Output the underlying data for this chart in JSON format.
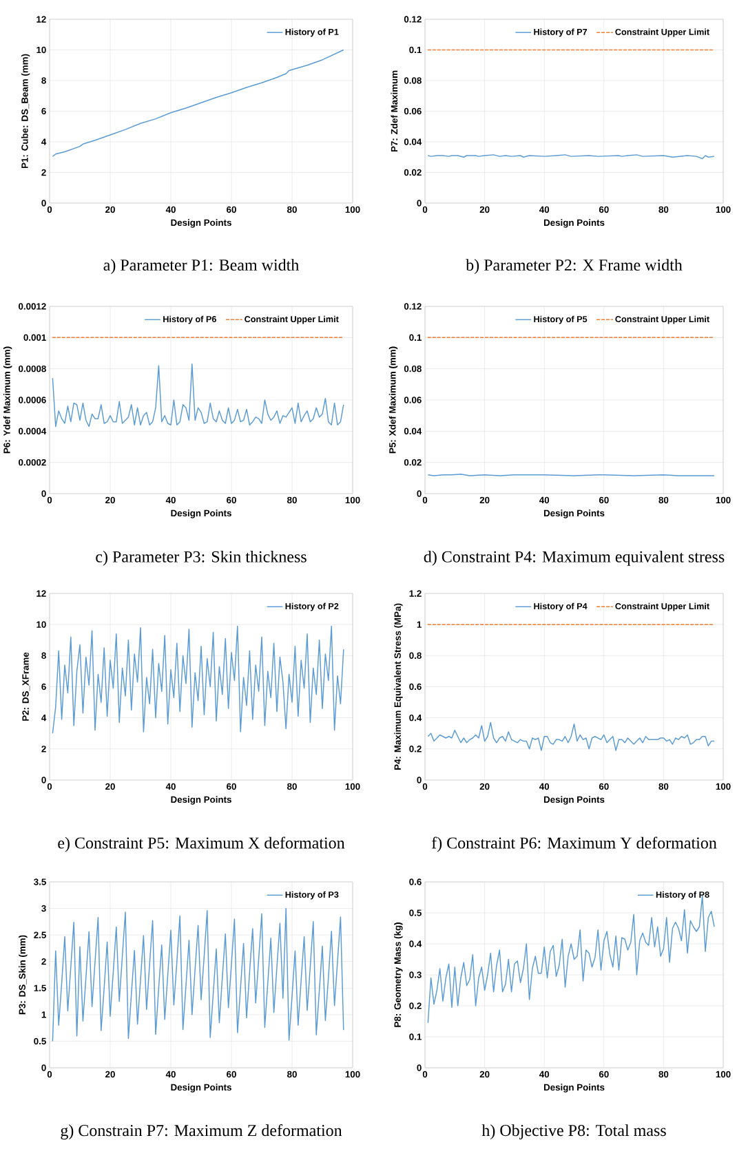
{
  "chart_data": [
    {
      "type": "line",
      "xlabel": "Design Points",
      "ylabel": "P1: Cube: DS_Beam (mm)",
      "annotations": [
        "a) Parameter P1: Beam width"
      ],
      "xlim": [
        0,
        100
      ],
      "xticks": [
        0,
        20,
        40,
        60,
        80,
        100
      ],
      "ylim": [
        0,
        12
      ],
      "yticks": [
        0,
        2,
        4,
        6,
        8,
        10,
        12
      ],
      "grid": true,
      "legend": "top right",
      "series": [
        {
          "name": "History of P1",
          "color": "#5b9bd5",
          "x": [
            1,
            2,
            5,
            10,
            11,
            15,
            20,
            25,
            30,
            35,
            40,
            45,
            50,
            55,
            60,
            65,
            70,
            75,
            78,
            79,
            85,
            90,
            97
          ],
          "values": [
            3.05,
            3.2,
            3.35,
            3.7,
            3.85,
            4.1,
            4.45,
            4.8,
            5.2,
            5.5,
            5.9,
            6.2,
            6.55,
            6.9,
            7.2,
            7.55,
            7.85,
            8.2,
            8.45,
            8.65,
            9.0,
            9.35,
            10.0
          ]
        }
      ]
    },
    {
      "type": "line",
      "xlabel": "Design Points",
      "ylabel": "P7: Zdef Maximum",
      "annotations": [
        "b) Parameter P2: X Frame width"
      ],
      "xlim": [
        0,
        100
      ],
      "xticks": [
        0,
        20,
        40,
        60,
        80,
        100
      ],
      "ylim": [
        0,
        0.12
      ],
      "yticks": [
        0,
        0.02,
        0.04,
        0.06,
        0.08,
        0.1,
        0.12
      ],
      "grid": true,
      "legend": "top right",
      "series": [
        {
          "name": "History of P7",
          "color": "#5b9bd5",
          "x": [
            1,
            2,
            4,
            6,
            8,
            9,
            11,
            13,
            14,
            17,
            18,
            20,
            23,
            25,
            27,
            29,
            32,
            33,
            35,
            40,
            44,
            47,
            49,
            55,
            58,
            65,
            66,
            68,
            71,
            73,
            80,
            83,
            88,
            91,
            93,
            94,
            95,
            97
          ],
          "values": [
            0.031,
            0.0305,
            0.031,
            0.031,
            0.0305,
            0.031,
            0.031,
            0.03,
            0.031,
            0.031,
            0.0305,
            0.031,
            0.0315,
            0.0305,
            0.031,
            0.0305,
            0.031,
            0.03,
            0.031,
            0.0305,
            0.031,
            0.0315,
            0.0305,
            0.031,
            0.0305,
            0.031,
            0.0305,
            0.031,
            0.0315,
            0.0305,
            0.031,
            0.03,
            0.031,
            0.0305,
            0.029,
            0.031,
            0.03,
            0.0305
          ]
        },
        {
          "name": "Constraint Upper Limit",
          "color": "#ed7d31",
          "line_style": "dashed",
          "x": [
            1,
            97
          ],
          "values": [
            0.1,
            0.1
          ]
        }
      ]
    },
    {
      "type": "line",
      "xlabel": "Design Points",
      "ylabel": "P6: Ydef Maximum (mm)",
      "annotations": [
        "c) Parameter P3: Skin thickness"
      ],
      "xlim": [
        0,
        100
      ],
      "xticks": [
        0,
        20,
        40,
        60,
        80,
        100
      ],
      "ylim": [
        0,
        0.0012
      ],
      "yticks": [
        0,
        0.0002,
        0.0004,
        0.0006,
        0.0008,
        0.001,
        0.0012
      ],
      "grid": true,
      "legend": "top right",
      "series": [
        {
          "name": "History of P6",
          "color": "#5b9bd5",
          "x": [
            1,
            2,
            3,
            4,
            5,
            6,
            7,
            8,
            9,
            10,
            11,
            12,
            13,
            14,
            15,
            16,
            17,
            18,
            19,
            20,
            21,
            22,
            23,
            24,
            25,
            26,
            27,
            28,
            29,
            30,
            31,
            32,
            33,
            34,
            35,
            36,
            37,
            38,
            39,
            40,
            41,
            42,
            43,
            44,
            45,
            46,
            47,
            48,
            49,
            50,
            51,
            52,
            53,
            54,
            55,
            56,
            57,
            58,
            59,
            60,
            61,
            62,
            63,
            64,
            65,
            66,
            67,
            68,
            69,
            70,
            71,
            72,
            73,
            74,
            75,
            76,
            77,
            78,
            79,
            80,
            81,
            82,
            83,
            84,
            85,
            86,
            87,
            88,
            89,
            90,
            91,
            92,
            93,
            94,
            95,
            96,
            97
          ],
          "values": [
            0.00074,
            0.00043,
            0.00053,
            0.00048,
            0.00045,
            0.00056,
            0.00046,
            0.00058,
            0.00057,
            0.00047,
            0.00058,
            0.00047,
            0.00043,
            0.00051,
            0.00048,
            0.00048,
            0.00057,
            0.00045,
            0.00046,
            0.0005,
            0.00046,
            0.00046,
            0.00059,
            0.00045,
            0.00047,
            0.00049,
            0.00057,
            0.00044,
            0.00055,
            0.00044,
            0.0005,
            0.00052,
            0.00044,
            0.00046,
            0.00055,
            0.00082,
            0.00046,
            0.0005,
            0.00045,
            0.00044,
            0.0006,
            0.00044,
            0.00046,
            0.00057,
            0.00055,
            0.00047,
            0.00083,
            0.00047,
            0.00055,
            0.00052,
            0.00045,
            0.00046,
            0.00058,
            0.00048,
            0.00046,
            0.00053,
            0.00047,
            0.00045,
            0.00055,
            0.00045,
            0.00047,
            0.00054,
            0.00046,
            0.00047,
            0.00054,
            0.00044,
            0.00046,
            0.00049,
            0.00048,
            0.00045,
            0.0006,
            0.00051,
            0.00047,
            0.00049,
            0.00053,
            0.00045,
            0.0005,
            0.00049,
            0.00052,
            0.00055,
            0.00045,
            0.00058,
            0.00046,
            0.0005,
            0.00053,
            0.00046,
            0.00048,
            0.00055,
            0.00049,
            0.00051,
            0.00061,
            0.00046,
            0.00044,
            0.00058,
            0.00044,
            0.00046,
            0.00057
          ]
        },
        {
          "name": "Constraint Upper Limit",
          "color": "#ed7d31",
          "line_style": "dashed",
          "x": [
            1,
            97
          ],
          "values": [
            0.001,
            0.001
          ]
        }
      ]
    },
    {
      "type": "line",
      "xlabel": "Design Points",
      "ylabel": "P5: Xdef Maximum (mm)",
      "annotations": [
        "d) Constraint P4: Maximum equivalent stress"
      ],
      "xlim": [
        0,
        100
      ],
      "xticks": [
        0,
        20,
        40,
        60,
        80,
        100
      ],
      "ylim": [
        0,
        0.12
      ],
      "yticks": [
        0,
        0.02,
        0.04,
        0.06,
        0.08,
        0.1,
        0.12
      ],
      "grid": true,
      "legend": "top right",
      "series": [
        {
          "name": "History of P5",
          "color": "#5b9bd5",
          "x": [
            1,
            3,
            6,
            9,
            12,
            15,
            20,
            25,
            30,
            40,
            50,
            58,
            60,
            70,
            80,
            85,
            90,
            97
          ],
          "values": [
            0.012,
            0.0115,
            0.012,
            0.012,
            0.0125,
            0.0115,
            0.012,
            0.0115,
            0.012,
            0.012,
            0.0115,
            0.012,
            0.012,
            0.0115,
            0.012,
            0.0115,
            0.0115,
            0.0115
          ]
        },
        {
          "name": "Constraint Upper Limit",
          "color": "#ed7d31",
          "line_style": "dashed",
          "x": [
            1,
            97
          ],
          "values": [
            0.1,
            0.1
          ]
        }
      ]
    },
    {
      "type": "line",
      "xlabel": "Design Points",
      "ylabel": "P2: DS_XFrame",
      "annotations": [
        "e) Constraint P5: Maximum X deformation"
      ],
      "xlim": [
        0,
        100
      ],
      "xticks": [
        0,
        20,
        40,
        60,
        80,
        100
      ],
      "ylim": [
        0,
        12
      ],
      "yticks": [
        0,
        2,
        4,
        6,
        8,
        10,
        12
      ],
      "grid": true,
      "legend": "top right",
      "series": [
        {
          "name": "History of P2",
          "color": "#5b9bd5",
          "x": [
            1,
            2,
            3,
            4,
            5,
            6,
            7,
            8,
            9,
            10,
            11,
            12,
            13,
            14,
            15,
            16,
            17,
            18,
            19,
            20,
            21,
            22,
            23,
            24,
            25,
            26,
            27,
            28,
            29,
            30,
            31,
            32,
            33,
            34,
            35,
            36,
            37,
            38,
            39,
            40,
            41,
            42,
            43,
            44,
            45,
            46,
            47,
            48,
            49,
            50,
            51,
            52,
            53,
            54,
            55,
            56,
            57,
            58,
            59,
            60,
            61,
            62,
            63,
            64,
            65,
            66,
            67,
            68,
            69,
            70,
            71,
            72,
            73,
            74,
            75,
            76,
            77,
            78,
            79,
            80,
            81,
            82,
            83,
            84,
            85,
            86,
            87,
            88,
            89,
            90,
            91,
            92,
            93,
            94,
            95,
            96,
            97
          ],
          "values": [
            3.0,
            4.7,
            8.3,
            3.9,
            7.4,
            5.6,
            9.2,
            3.5,
            7.0,
            8.7,
            4.3,
            7.9,
            6.1,
            9.6,
            3.2,
            6.8,
            5.0,
            8.5,
            4.1,
            7.7,
            5.9,
            9.4,
            3.7,
            7.2,
            5.4,
            9.0,
            4.5,
            8.1,
            6.3,
            9.8,
            3.1,
            6.6,
            4.9,
            8.4,
            4.0,
            7.5,
            5.7,
            9.3,
            3.6,
            7.1,
            5.3,
            8.8,
            4.4,
            8.0,
            6.2,
            9.7,
            3.4,
            6.9,
            5.1,
            8.6,
            4.2,
            7.8,
            6.0,
            9.5,
            3.8,
            7.3,
            5.5,
            9.1,
            4.6,
            8.2,
            6.4,
            9.9,
            3.1,
            6.6,
            4.8,
            8.3,
            3.9,
            7.4,
            5.7,
            9.2,
            3.5,
            7.0,
            5.3,
            8.8,
            4.4,
            7.9,
            6.3,
            3.3,
            6.8,
            5.0,
            8.6,
            4.1,
            7.7,
            5.9,
            9.4,
            3.7,
            7.2,
            5.5,
            9.0,
            4.6,
            8.1,
            6.4,
            9.9,
            3.2,
            6.7,
            4.9,
            8.4
          ]
        }
      ]
    },
    {
      "type": "line",
      "xlabel": "Design Points",
      "ylabel": "P4: Maximum Equivalent Stress (MPa)",
      "annotations": [
        "f) Constraint P6: Maximum Y deformation"
      ],
      "xlim": [
        0,
        100
      ],
      "xticks": [
        0,
        20,
        40,
        60,
        80,
        100
      ],
      "ylim": [
        0,
        1.2
      ],
      "yticks": [
        0,
        0.2,
        0.4,
        0.6,
        0.8,
        1,
        1.2
      ],
      "grid": true,
      "legend": "top right",
      "series": [
        {
          "name": "History of P4",
          "color": "#5b9bd5",
          "x": [
            1,
            2,
            3,
            4,
            5,
            6,
            7,
            8,
            9,
            10,
            11,
            12,
            13,
            14,
            15,
            16,
            17,
            18,
            19,
            20,
            21,
            22,
            23,
            24,
            25,
            26,
            27,
            28,
            29,
            30,
            31,
            32,
            33,
            34,
            35,
            36,
            37,
            38,
            39,
            40,
            41,
            42,
            43,
            44,
            45,
            46,
            47,
            48,
            49,
            50,
            51,
            52,
            53,
            54,
            55,
            56,
            57,
            58,
            59,
            60,
            61,
            62,
            63,
            64,
            65,
            66,
            67,
            68,
            69,
            70,
            71,
            72,
            73,
            74,
            75,
            76,
            77,
            78,
            79,
            80,
            81,
            82,
            83,
            84,
            85,
            86,
            87,
            88,
            89,
            90,
            91,
            92,
            93,
            94,
            95,
            96,
            97
          ],
          "values": [
            0.28,
            0.3,
            0.25,
            0.27,
            0.29,
            0.28,
            0.27,
            0.28,
            0.27,
            0.32,
            0.28,
            0.24,
            0.27,
            0.24,
            0.26,
            0.27,
            0.29,
            0.27,
            0.35,
            0.25,
            0.28,
            0.37,
            0.27,
            0.24,
            0.27,
            0.28,
            0.25,
            0.31,
            0.26,
            0.25,
            0.24,
            0.26,
            0.25,
            0.25,
            0.2,
            0.27,
            0.26,
            0.27,
            0.19,
            0.28,
            0.28,
            0.24,
            0.23,
            0.26,
            0.26,
            0.25,
            0.28,
            0.24,
            0.28,
            0.36,
            0.25,
            0.29,
            0.26,
            0.27,
            0.2,
            0.27,
            0.28,
            0.27,
            0.26,
            0.29,
            0.24,
            0.26,
            0.28,
            0.19,
            0.26,
            0.26,
            0.24,
            0.27,
            0.25,
            0.23,
            0.25,
            0.27,
            0.24,
            0.28,
            0.26,
            0.26,
            0.26,
            0.26,
            0.27,
            0.27,
            0.25,
            0.26,
            0.23,
            0.27,
            0.26,
            0.28,
            0.27,
            0.29,
            0.23,
            0.24,
            0.26,
            0.26,
            0.28,
            0.28,
            0.22,
            0.25,
            0.25
          ]
        },
        {
          "name": "Constraint Upper Limit",
          "color": "#ed7d31",
          "line_style": "dashed",
          "x": [
            1,
            97
          ],
          "values": [
            1,
            1
          ]
        }
      ]
    },
    {
      "type": "line",
      "xlabel": "Design Points",
      "ylabel": "P3: DS_Skin (mm)",
      "annotations": [
        "g) Constrain P7: Maximum Z deformation"
      ],
      "xlim": [
        0,
        100
      ],
      "xticks": [
        0,
        20,
        40,
        60,
        80,
        100
      ],
      "ylim": [
        0,
        3.5
      ],
      "yticks": [
        0,
        0.5,
        1,
        1.5,
        2,
        2.5,
        3,
        3.5
      ],
      "grid": true,
      "legend": "top right",
      "series": [
        {
          "name": "History of P3",
          "color": "#5b9bd5",
          "x": [
            1,
            2,
            3,
            4,
            5,
            6,
            7,
            8,
            9,
            10,
            11,
            12,
            13,
            14,
            15,
            16,
            17,
            18,
            19,
            20,
            21,
            22,
            23,
            24,
            25,
            26,
            27,
            28,
            29,
            30,
            31,
            32,
            33,
            34,
            35,
            36,
            37,
            38,
            39,
            40,
            41,
            42,
            43,
            44,
            45,
            46,
            47,
            48,
            49,
            50,
            51,
            52,
            53,
            54,
            55,
            56,
            57,
            58,
            59,
            60,
            61,
            62,
            63,
            64,
            65,
            66,
            67,
            68,
            69,
            70,
            71,
            72,
            73,
            74,
            75,
            76,
            77,
            78,
            79,
            80,
            81,
            82,
            83,
            84,
            85,
            86,
            87,
            88,
            89,
            90,
            91,
            92,
            93,
            94,
            95,
            96,
            97
          ],
          "values": [
            0.5,
            2.2,
            0.8,
            1.6,
            2.47,
            1.07,
            1.9,
            2.74,
            0.6,
            2.28,
            0.88,
            1.7,
            2.56,
            1.15,
            2.0,
            2.83,
            0.7,
            1.5,
            2.37,
            0.97,
            1.8,
            2.65,
            1.25,
            2.1,
            2.93,
            0.55,
            1.4,
            2.21,
            0.82,
            1.65,
            2.49,
            1.1,
            1.95,
            2.77,
            0.63,
            1.5,
            2.31,
            0.91,
            1.75,
            2.59,
            1.18,
            2.0,
            2.86,
            0.72,
            1.55,
            2.4,
            1.0,
            1.85,
            2.68,
            1.28,
            2.1,
            2.96,
            0.57,
            1.4,
            2.24,
            0.85,
            1.7,
            2.52,
            1.13,
            1.95,
            2.8,
            0.66,
            1.5,
            2.34,
            0.94,
            1.8,
            2.62,
            1.22,
            2.05,
            2.9,
            0.76,
            1.6,
            2.44,
            1.04,
            1.9,
            2.72,
            1.31,
            3.0,
            0.52,
            1.35,
            2.2,
            0.8,
            1.65,
            2.47,
            1.08,
            1.9,
            2.75,
            0.62,
            1.45,
            2.29,
            0.89,
            1.7,
            2.57,
            1.17,
            2.0,
            2.84,
            0.71
          ]
        }
      ]
    },
    {
      "type": "line",
      "xlabel": "Design Points",
      "ylabel": "P8: Geometry Mass (kg)",
      "annotations": [
        "h) Objective P8: Total mass"
      ],
      "xlim": [
        0,
        100
      ],
      "xticks": [
        0,
        20,
        40,
        60,
        80,
        100
      ],
      "ylim": [
        0,
        0.6
      ],
      "yticks": [
        0,
        0.1,
        0.2,
        0.3,
        0.4,
        0.5,
        0.6
      ],
      "grid": true,
      "legend": "top right",
      "series": [
        {
          "name": "History of P8",
          "color": "#5b9bd5",
          "x": [
            1,
            2,
            3,
            4,
            5,
            6,
            7,
            8,
            9,
            10,
            11,
            12,
            13,
            14,
            15,
            16,
            17,
            18,
            19,
            20,
            21,
            22,
            23,
            24,
            25,
            26,
            27,
            28,
            29,
            30,
            31,
            32,
            33,
            34,
            35,
            36,
            37,
            38,
            39,
            40,
            41,
            42,
            43,
            44,
            45,
            46,
            47,
            48,
            49,
            50,
            51,
            52,
            53,
            54,
            55,
            56,
            57,
            58,
            59,
            60,
            61,
            62,
            63,
            64,
            65,
            66,
            67,
            68,
            69,
            70,
            71,
            72,
            73,
            74,
            75,
            76,
            77,
            78,
            79,
            80,
            81,
            82,
            83,
            84,
            85,
            86,
            87,
            88,
            89,
            90,
            91,
            92,
            93,
            94,
            95,
            96,
            97
          ],
          "values": [
            0.145,
            0.29,
            0.205,
            0.25,
            0.32,
            0.215,
            0.29,
            0.335,
            0.195,
            0.325,
            0.2,
            0.29,
            0.34,
            0.265,
            0.285,
            0.365,
            0.2,
            0.29,
            0.325,
            0.25,
            0.3,
            0.37,
            0.245,
            0.33,
            0.38,
            0.245,
            0.27,
            0.35,
            0.245,
            0.335,
            0.345,
            0.275,
            0.32,
            0.4,
            0.22,
            0.32,
            0.36,
            0.305,
            0.305,
            0.39,
            0.29,
            0.375,
            0.395,
            0.295,
            0.33,
            0.415,
            0.26,
            0.36,
            0.4,
            0.35,
            0.36,
            0.445,
            0.28,
            0.38,
            0.37,
            0.325,
            0.355,
            0.445,
            0.315,
            0.41,
            0.44,
            0.365,
            0.325,
            0.425,
            0.315,
            0.42,
            0.415,
            0.38,
            0.405,
            0.495,
            0.3,
            0.41,
            0.435,
            0.405,
            0.395,
            0.485,
            0.39,
            0.455,
            0.36,
            0.385,
            0.485,
            0.34,
            0.45,
            0.47,
            0.45,
            0.41,
            0.51,
            0.37,
            0.475,
            0.455,
            0.44,
            0.455,
            0.555,
            0.375,
            0.485,
            0.505,
            0.455
          ]
        }
      ]
    }
  ]
}
